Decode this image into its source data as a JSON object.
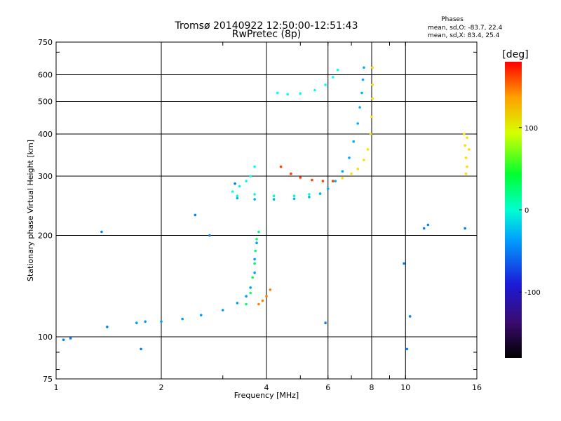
{
  "chart_data": {
    "type": "scatter",
    "title": "Tromsø 20140922 12:50:00-12:51:43",
    "subtitle": "RwPretec (8p)",
    "stats": {
      "heading": "Phases",
      "line_o": "mean, sd,O: -83.7, 22.4",
      "line_x": "mean, sd,X:  83.4, 25.4"
    },
    "xlabel": "Frequency [MHz]",
    "ylabel": "Stationary phase Virtual Height [km]",
    "x_scale": "log",
    "y_scale": "log",
    "xlim": [
      1,
      16
    ],
    "ylim": [
      75,
      750
    ],
    "xticks": [
      1,
      2,
      4,
      6,
      8,
      10,
      16
    ],
    "xtick_labels": [
      "1",
      "2",
      "4",
      "6",
      "8",
      "10",
      "16"
    ],
    "yticks": [
      75,
      100,
      200,
      300,
      400,
      500,
      600,
      750
    ],
    "ytick_labels": [
      "75",
      "100",
      "200",
      "300",
      "400",
      "500",
      "600",
      "750"
    ],
    "grid": true,
    "colorbar": {
      "label": "[deg]",
      "range": [
        -180,
        180
      ],
      "ticks": [
        100,
        0,
        -100
      ],
      "tick_labels": [
        "100",
        "0",
        "-100"
      ]
    },
    "series": [
      {
        "mode": "E-layer trace",
        "phase_deg": -90,
        "points": [
          [
            1.7,
            110
          ],
          [
            1.8,
            111
          ],
          [
            2.0,
            111
          ],
          [
            2.3,
            113
          ],
          [
            2.6,
            116
          ],
          [
            3.0,
            120
          ],
          [
            3.3,
            126
          ],
          [
            3.5,
            132
          ],
          [
            3.6,
            140
          ],
          [
            3.7,
            155
          ],
          [
            3.7,
            170
          ],
          [
            3.75,
            190
          ]
        ]
      },
      {
        "mode": "E-layer cusp",
        "phase_deg": -15,
        "points": [
          [
            3.5,
            125
          ],
          [
            3.6,
            135
          ],
          [
            3.65,
            150
          ],
          [
            3.7,
            165
          ],
          [
            3.72,
            180
          ],
          [
            3.75,
            195
          ],
          [
            3.8,
            205
          ]
        ]
      },
      {
        "mode": "E-layer X trace",
        "phase_deg": 140,
        "points": [
          [
            3.8,
            125
          ],
          [
            3.9,
            128
          ],
          [
            4.0,
            132
          ],
          [
            4.1,
            138
          ]
        ]
      },
      {
        "mode": "F2 O trace",
        "phase_deg": -85,
        "points": [
          [
            3.3,
            258
          ],
          [
            3.7,
            256
          ],
          [
            4.2,
            256
          ],
          [
            4.8,
            257
          ],
          [
            5.3,
            260
          ],
          [
            5.7,
            266
          ],
          [
            6.0,
            275
          ],
          [
            6.3,
            290
          ],
          [
            6.6,
            310
          ],
          [
            6.9,
            340
          ],
          [
            7.1,
            380
          ],
          [
            7.3,
            430
          ],
          [
            7.4,
            480
          ],
          [
            7.5,
            530
          ],
          [
            7.55,
            580
          ],
          [
            7.6,
            630
          ]
        ]
      },
      {
        "mode": "F2 O trace spread",
        "phase_deg": -40,
        "points": [
          [
            3.3,
            262
          ],
          [
            3.7,
            265
          ],
          [
            4.2,
            262
          ],
          [
            4.8,
            262
          ],
          [
            5.3,
            265
          ]
        ]
      },
      {
        "mode": "F2 X trace",
        "phase_deg": 110,
        "points": [
          [
            6.2,
            290
          ],
          [
            6.6,
            296
          ],
          [
            7.0,
            305
          ],
          [
            7.3,
            315
          ],
          [
            7.6,
            335
          ],
          [
            7.8,
            360
          ],
          [
            7.95,
            400
          ],
          [
            8.0,
            450
          ],
          [
            8.05,
            510
          ],
          [
            8.05,
            560
          ],
          [
            8.05,
            630
          ]
        ]
      },
      {
        "mode": "F2 X lower branch",
        "phase_deg": 160,
        "points": [
          [
            4.4,
            320
          ],
          [
            4.7,
            305
          ],
          [
            5.0,
            297
          ],
          [
            5.4,
            292
          ],
          [
            5.8,
            290
          ],
          [
            6.2,
            290
          ]
        ]
      },
      {
        "mode": "F multiple",
        "phase_deg": -60,
        "points": [
          [
            4.3,
            530
          ],
          [
            4.6,
            525
          ],
          [
            5.0,
            528
          ],
          [
            5.5,
            540
          ],
          [
            5.9,
            560
          ],
          [
            6.2,
            590
          ],
          [
            6.4,
            620
          ]
        ]
      },
      {
        "mode": "Blobs",
        "phase_deg": -55,
        "points": [
          [
            3.2,
            270
          ],
          [
            3.35,
            280
          ],
          [
            3.5,
            290
          ],
          [
            3.6,
            300
          ],
          [
            3.7,
            320
          ]
        ]
      },
      {
        "mode": "Outliers",
        "phase_deg": -100,
        "points": [
          [
            1.05,
            98
          ],
          [
            1.1,
            99
          ],
          [
            1.4,
            107
          ],
          [
            1.75,
            92
          ],
          [
            1.35,
            205
          ],
          [
            2.5,
            230
          ],
          [
            2.75,
            200
          ],
          [
            3.25,
            285
          ],
          [
            5.9,
            110
          ],
          [
            9.9,
            165
          ],
          [
            10.1,
            92
          ],
          [
            10.3,
            115
          ],
          [
            11.3,
            210
          ],
          [
            11.6,
            215
          ],
          [
            14.8,
            210
          ]
        ]
      },
      {
        "mode": "High-frequency cluster",
        "phase_deg": 110,
        "points": [
          [
            14.7,
            400
          ],
          [
            14.8,
            370
          ],
          [
            14.9,
            340
          ],
          [
            15.0,
            320
          ],
          [
            14.9,
            305
          ],
          [
            15.2,
            360
          ],
          [
            15.0,
            390
          ]
        ]
      }
    ]
  }
}
